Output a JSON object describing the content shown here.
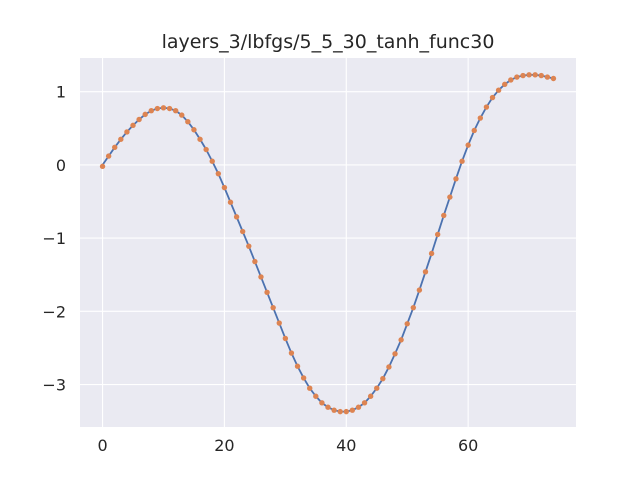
{
  "chart_data": {
    "type": "line",
    "title": "layers_3/lbfgs/5_5_30_tanh_func30",
    "xlabel": "",
    "ylabel": "",
    "xlim": [
      -3.7,
      77.7
    ],
    "ylim": [
      -3.58,
      1.46
    ],
    "grid": true,
    "x_ticks": [
      0,
      20,
      40,
      60
    ],
    "y_ticks": [
      1,
      0,
      -1,
      -2,
      -3
    ],
    "x_tick_labels": [
      "0",
      "20",
      "40",
      "60"
    ],
    "y_tick_labels": [
      "1",
      "0",
      "−1",
      "−2",
      "−3"
    ],
    "colors": {
      "background": "#eaeaf2",
      "grid": "#ffffff",
      "line": "#4c72b0",
      "points": "#dd8452",
      "text": "#262626"
    },
    "series": [
      {
        "style": "line",
        "color": "#4c72b0",
        "x": [
          0,
          1,
          2,
          3,
          4,
          5,
          6,
          7,
          8,
          9,
          10,
          11,
          12,
          13,
          14,
          15,
          16,
          17,
          18,
          19,
          20,
          21,
          22,
          23,
          24,
          25,
          26,
          27,
          28,
          29,
          30,
          31,
          32,
          33,
          34,
          35,
          36,
          37,
          38,
          39,
          40,
          41,
          42,
          43,
          44,
          45,
          46,
          47,
          48,
          49,
          50,
          51,
          52,
          53,
          54,
          55,
          56,
          57,
          58,
          59,
          60,
          61,
          62,
          63,
          64,
          65,
          66,
          67,
          68,
          69,
          70,
          71,
          72,
          73,
          74
        ],
        "y": [
          0.0,
          0.12,
          0.24,
          0.35,
          0.45,
          0.54,
          0.62,
          0.69,
          0.74,
          0.77,
          0.78,
          0.77,
          0.74,
          0.68,
          0.59,
          0.48,
          0.35,
          0.21,
          0.05,
          -0.12,
          -0.31,
          -0.51,
          -0.71,
          -0.91,
          -1.11,
          -1.32,
          -1.53,
          -1.74,
          -1.95,
          -2.16,
          -2.37,
          -2.57,
          -2.75,
          -2.91,
          -3.05,
          -3.16,
          -3.25,
          -3.31,
          -3.35,
          -3.37,
          -3.37,
          -3.35,
          -3.31,
          -3.25,
          -3.16,
          -3.05,
          -2.92,
          -2.76,
          -2.58,
          -2.39,
          -2.17,
          -1.95,
          -1.71,
          -1.46,
          -1.21,
          -0.95,
          -0.69,
          -0.44,
          -0.19,
          0.05,
          0.27,
          0.47,
          0.64,
          0.79,
          0.92,
          1.02,
          1.1,
          1.16,
          1.2,
          1.22,
          1.23,
          1.23,
          1.22,
          1.2,
          1.18
        ]
      },
      {
        "style": "points",
        "color": "#dd8452",
        "x": [
          0,
          1,
          2,
          3,
          4,
          5,
          6,
          7,
          8,
          9,
          10,
          11,
          12,
          13,
          14,
          15,
          16,
          17,
          18,
          19,
          20,
          21,
          22,
          23,
          24,
          25,
          26,
          27,
          28,
          29,
          30,
          31,
          32,
          33,
          34,
          35,
          36,
          37,
          38,
          39,
          40,
          41,
          42,
          43,
          44,
          45,
          46,
          47,
          48,
          49,
          50,
          51,
          52,
          53,
          54,
          55,
          56,
          57,
          58,
          59,
          60,
          61,
          62,
          63,
          64,
          65,
          66,
          67,
          68,
          69,
          70,
          71,
          72,
          73,
          74
        ],
        "y": [
          -0.02,
          0.12,
          0.24,
          0.35,
          0.45,
          0.54,
          0.62,
          0.69,
          0.74,
          0.77,
          0.78,
          0.77,
          0.74,
          0.68,
          0.59,
          0.48,
          0.35,
          0.21,
          0.05,
          -0.12,
          -0.31,
          -0.51,
          -0.71,
          -0.91,
          -1.11,
          -1.32,
          -1.53,
          -1.74,
          -1.95,
          -2.16,
          -2.37,
          -2.57,
          -2.75,
          -2.91,
          -3.05,
          -3.16,
          -3.25,
          -3.31,
          -3.35,
          -3.37,
          -3.37,
          -3.35,
          -3.31,
          -3.25,
          -3.16,
          -3.05,
          -2.92,
          -2.76,
          -2.58,
          -2.39,
          -2.17,
          -1.95,
          -1.71,
          -1.46,
          -1.21,
          -0.95,
          -0.69,
          -0.44,
          -0.19,
          0.05,
          0.27,
          0.47,
          0.64,
          0.79,
          0.92,
          1.02,
          1.1,
          1.16,
          1.2,
          1.22,
          1.23,
          1.23,
          1.22,
          1.2,
          1.18
        ]
      }
    ]
  }
}
